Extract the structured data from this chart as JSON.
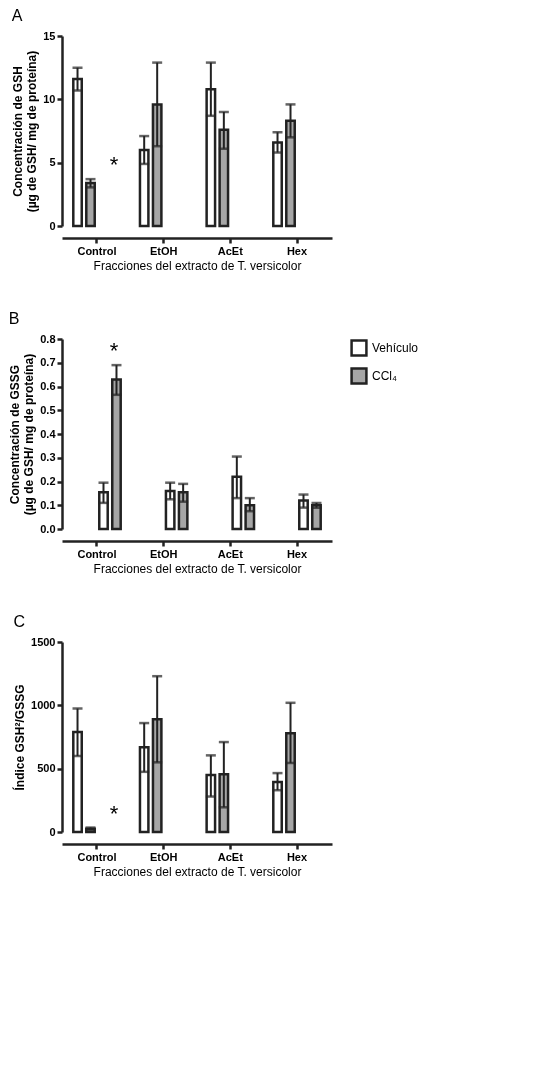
{
  "chart_data": [
    {
      "type": "bar",
      "title": "A",
      "ylabel": "Concentración de GSH\n(µg de GSH/ mg de proteína)",
      "xlabel": "Fracciones del extracto de T. versicolor",
      "categories": [
        "Control",
        "EtOH",
        "AcEt",
        "Hex"
      ],
      "ylim": [
        0,
        15
      ],
      "yticks": [
        0,
        5,
        10,
        15
      ],
      "grid": false,
      "legend": false,
      "series": [
        {
          "color": "#ffffff",
          "values": [
            11.6,
            6.0,
            10.8,
            6.6
          ],
          "errors": [
            [
              10.7,
              12.5
            ],
            [
              4.9,
              7.1
            ],
            [
              8.7,
              12.9
            ],
            [
              5.8,
              7.4
            ]
          ]
        },
        {
          "color": "#a6a6a6",
          "values": [
            3.4,
            9.6,
            7.6,
            8.3
          ],
          "errors": [
            [
              3.05,
              3.7
            ],
            [
              6.3,
              12.9
            ],
            [
              6.1,
              9.0
            ],
            [
              7.0,
              9.6
            ]
          ]
        }
      ],
      "annotations": [
        "*"
      ]
    },
    {
      "type": "bar",
      "title": "B",
      "ylabel": "Concentración de GSSG\n(µg de GSH/ mg de proteína)",
      "xlabel": "Fracciones del extracto de T. versicolor",
      "categories": [
        "Control",
        "EtOH",
        "AcEt",
        "Hex"
      ],
      "ylim": [
        0,
        0.8
      ],
      "yticks": [
        {
          "value": 0,
          "label": "0.0"
        },
        0.1,
        0.2,
        0.3,
        0.4,
        0.5,
        0.6,
        0.7,
        0.8
      ],
      "grid": false,
      "legend": "right",
      "series": [
        {
          "name": "Vehículo",
          "color": "#ffffff",
          "values": [
            0.155,
            0.16,
            0.22,
            0.12
          ],
          "errors": [
            [
              0.11,
              0.195
            ],
            [
              0.125,
              0.195
            ],
            [
              0.13,
              0.305
            ],
            [
              0.09,
              0.145
            ]
          ]
        },
        {
          "name": "CCl₄",
          "color": "#a6a6a6",
          "values": [
            0.63,
            0.155,
            0.1,
            0.1
          ],
          "errors": [
            [
              0.565,
              0.69
            ],
            [
              0.115,
              0.19
            ],
            [
              0.075,
              0.13
            ],
            [
              0.09,
              0.11
            ]
          ]
        }
      ],
      "annotations": [
        "*"
      ]
    },
    {
      "type": "bar",
      "title": "C",
      "ylabel": "Índice GSH²/GSSG",
      "xlabel": "Fracciones del extracto de T. versicolor",
      "categories": [
        "Control",
        "EtOH",
        "AcEt",
        "Hex"
      ],
      "ylim": [
        0,
        1500
      ],
      "yticks": [
        0,
        500,
        1000,
        1500
      ],
      "grid": false,
      "legend": false,
      "series": [
        {
          "color": "#ffffff",
          "values": [
            790,
            670,
            450,
            395
          ],
          "errors": [
            [
              600,
              975
            ],
            [
              475,
              860
            ],
            [
              280,
              605
            ],
            [
              330,
              465
            ]
          ]
        },
        {
          "color": "#a6a6a6",
          "values": [
            25,
            890,
            455,
            780
          ],
          "errors": [
            [
              15,
              35
            ],
            [
              550,
              1230
            ],
            [
              195,
              710
            ],
            [
              545,
              1020
            ]
          ]
        }
      ],
      "annotations": [
        "*"
      ]
    }
  ]
}
